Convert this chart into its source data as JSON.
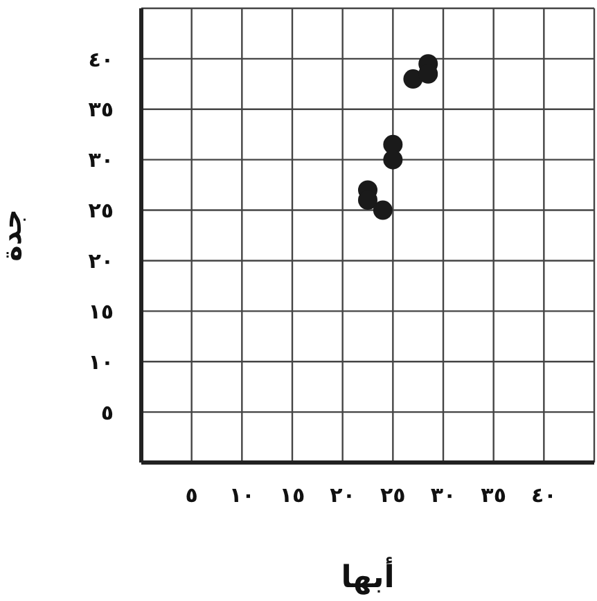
{
  "chart_data": {
    "type": "scatter",
    "xlabel": "أبها",
    "ylabel": "جدة",
    "x": [
      27,
      28.5,
      28.5,
      25,
      25,
      22.5,
      22.5,
      24
    ],
    "values": [
      38,
      39.5,
      38.5,
      31.5,
      30,
      27,
      26,
      25
    ],
    "color": "#1a1a1a",
    "marker": "circle",
    "grid": true,
    "xlim": [
      0,
      45
    ],
    "ylim": [
      0,
      45
    ],
    "xticks": [
      {
        "value": 5,
        "label": "٥"
      },
      {
        "value": 10,
        "label": "١٠"
      },
      {
        "value": 15,
        "label": "١٥"
      },
      {
        "value": 20,
        "label": "٢٠"
      },
      {
        "value": 25,
        "label": "٢٥"
      },
      {
        "value": 30,
        "label": "٣٠"
      },
      {
        "value": 35,
        "label": "٣٥"
      },
      {
        "value": 40,
        "label": "٤٠"
      }
    ],
    "yticks": [
      {
        "value": 5,
        "label": "٥"
      },
      {
        "value": 10,
        "label": "١٠"
      },
      {
        "value": 15,
        "label": "١٥"
      },
      {
        "value": 20,
        "label": "٢٠"
      },
      {
        "value": 25,
        "label": "٢٥"
      },
      {
        "value": 30,
        "label": "٣٠"
      },
      {
        "value": 35,
        "label": "٣٥"
      },
      {
        "value": 40,
        "label": "٤٠"
      }
    ]
  }
}
